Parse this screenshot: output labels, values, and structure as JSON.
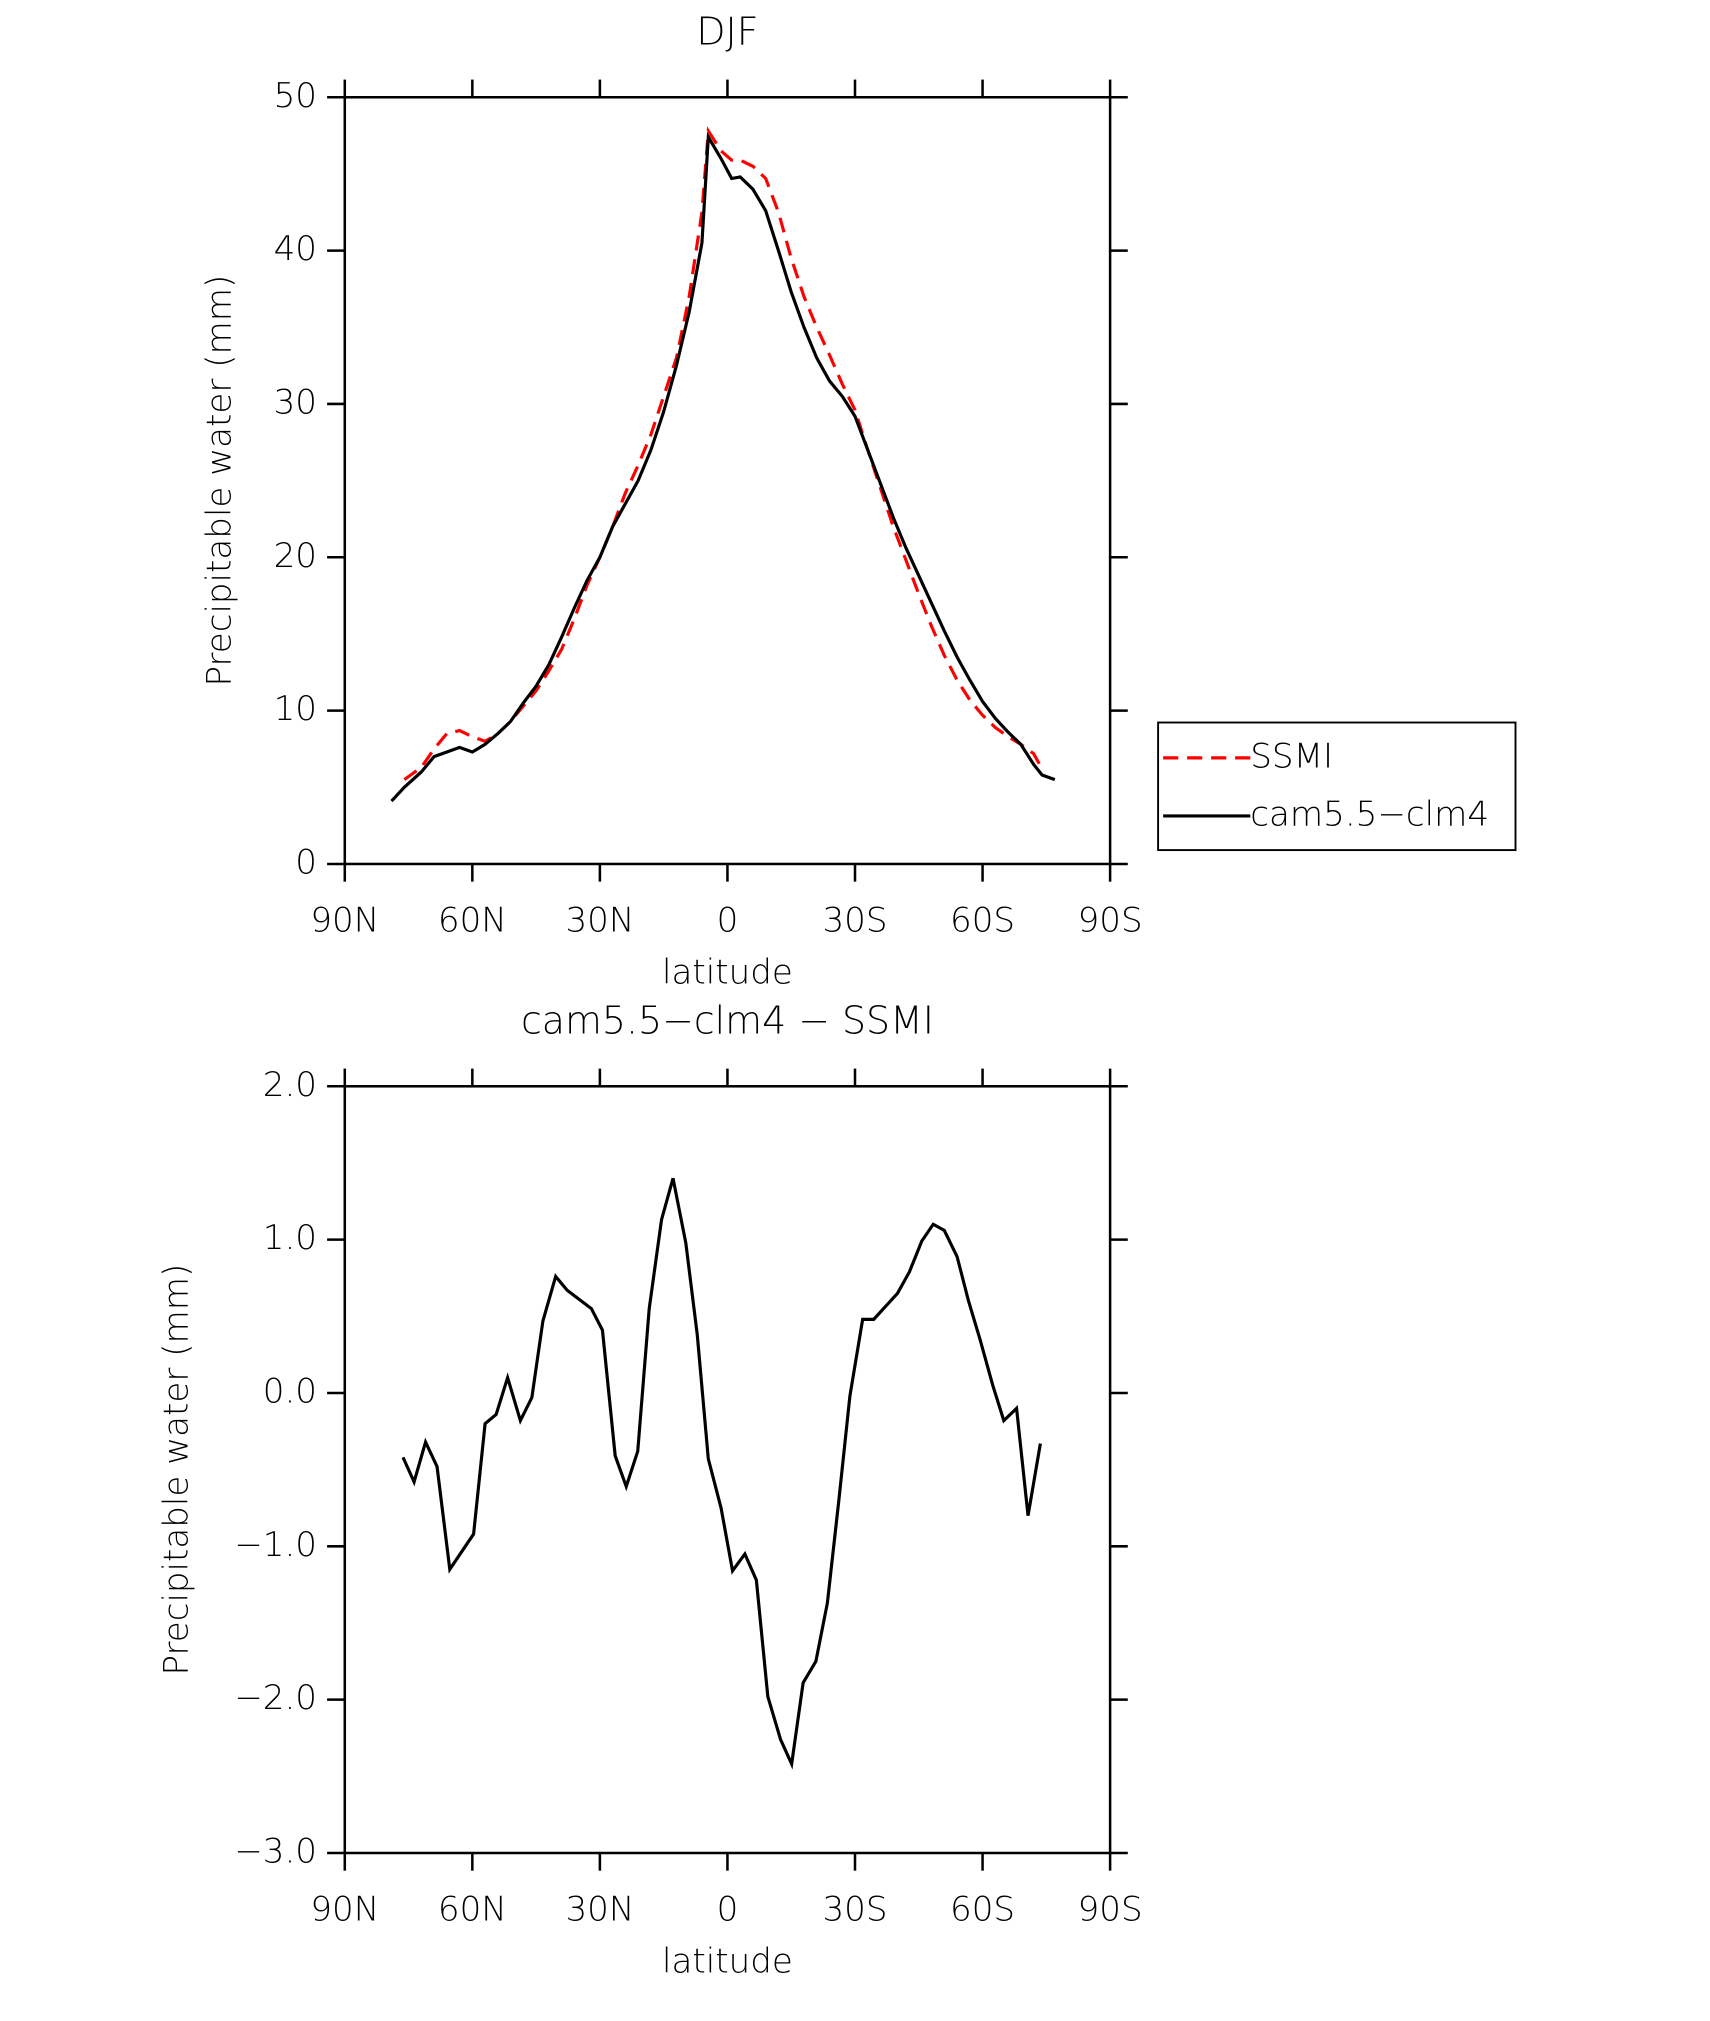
{
  "chart_data": [
    {
      "type": "line",
      "title": "DJF",
      "xlabel": "latitude",
      "ylabel": "Precipitable water (mm)",
      "x": [
        79,
        76,
        72,
        69,
        66,
        63,
        60,
        57,
        54,
        51,
        48,
        45,
        42,
        39,
        36,
        33,
        30,
        27,
        24,
        21,
        18,
        15,
        12,
        9,
        6,
        4.5,
        1.5,
        -1,
        -3,
        -6,
        -9,
        -12,
        -15,
        -18,
        -21,
        -24,
        -27,
        -30,
        -33,
        -36,
        -39,
        -42,
        -45,
        -48,
        -51,
        -54,
        -57,
        -60,
        -63,
        -66,
        -69,
        -72,
        -74,
        -77
      ],
      "series": [
        {
          "name": "SSMI",
          "color": "#ff0000",
          "dash": "dashed",
          "values": [
            null,
            5.5,
            6.3,
            7.5,
            8.5,
            8.7,
            8.3,
            8.0,
            8.5,
            9.3,
            10.3,
            11.3,
            12.6,
            14.0,
            16.0,
            18.2,
            20.0,
            22.0,
            24.2,
            26.0,
            28.0,
            30.5,
            33.0,
            37.0,
            42.5,
            47.8,
            46.5,
            45.9,
            45.9,
            45.5,
            44.7,
            42.5,
            39.5,
            37.0,
            35.0,
            33.2,
            31.3,
            29.6,
            27.0,
            24.5,
            22.0,
            19.8,
            17.6,
            15.5,
            13.6,
            12.0,
            10.7,
            9.7,
            8.9,
            8.3,
            7.8,
            7.2,
            6.2,
            null
          ]
        },
        {
          "name": "cam5.5−clm4",
          "color": "#000000",
          "dash": "solid",
          "values": [
            4.1,
            5.0,
            6.0,
            7.0,
            7.3,
            7.6,
            7.3,
            7.8,
            8.5,
            9.3,
            10.5,
            11.6,
            13.0,
            14.8,
            16.7,
            18.5,
            20.0,
            22.0,
            23.5,
            25.0,
            27.0,
            29.5,
            32.5,
            36.0,
            40.5,
            47.4,
            46.0,
            44.7,
            44.8,
            44.0,
            42.6,
            40.0,
            37.3,
            35.0,
            33.0,
            31.5,
            30.5,
            29.2,
            27.0,
            24.8,
            22.6,
            20.6,
            18.8,
            17.0,
            15.2,
            13.5,
            12.0,
            10.6,
            9.5,
            8.6,
            7.8,
            6.5,
            5.8,
            5.5
          ]
        }
      ],
      "xlim": [
        90,
        -90
      ],
      "xticks": [
        {
          "value": 90,
          "label": "90N"
        },
        {
          "value": 60,
          "label": "60N"
        },
        {
          "value": 30,
          "label": "30N"
        },
        0,
        {
          "value": -30,
          "label": "30S"
        },
        {
          "value": -60,
          "label": "60S"
        },
        {
          "value": -90,
          "label": "90S"
        }
      ],
      "ylim": [
        0,
        50
      ],
      "yticks": [
        0,
        10,
        20,
        30,
        40,
        50
      ],
      "legend": "outside right"
    },
    {
      "type": "line",
      "title": "cam5.5−clm4 − SSMI",
      "xlabel": "latitude",
      "ylabel": "Precipitable water (mm)",
      "x": [
        76.3,
        73.7,
        71,
        68.3,
        65.3,
        59.7,
        57,
        54.4,
        51.7,
        48.7,
        46,
        43.4,
        40.4,
        37.7,
        32,
        29.4,
        26.4,
        23.8,
        21.1,
        18.4,
        15.5,
        12.8,
        9.8,
        7.1,
        4.5,
        1.5,
        -1.2,
        -4.1,
        -6.8,
        -9.5,
        -12.5,
        -15.1,
        -17.8,
        -20.8,
        -23.5,
        -26.2,
        -28.8,
        -31.8,
        -34.4,
        -40,
        -42.8,
        -45.7,
        -48.4,
        -51,
        -54,
        -56.7,
        -59.4,
        -62.4,
        -65,
        -68,
        -70.7,
        -73.6
      ],
      "series": [
        {
          "color": "#000000",
          "dash": "solid",
          "values": [
            -0.42,
            -0.58,
            -0.32,
            -0.48,
            -1.15,
            -0.92,
            -0.2,
            -0.14,
            0.1,
            -0.18,
            -0.03,
            0.47,
            0.76,
            0.67,
            0.55,
            0.41,
            -0.41,
            -0.61,
            -0.38,
            0.55,
            1.13,
            1.4,
            0.98,
            0.38,
            -0.43,
            -0.75,
            -1.16,
            -1.05,
            -1.22,
            -1.98,
            -2.26,
            -2.42,
            -1.89,
            -1.75,
            -1.37,
            -0.7,
            -0.02,
            0.48,
            0.48,
            0.65,
            0.79,
            0.99,
            1.1,
            1.06,
            0.89,
            0.6,
            0.35,
            0.05,
            -0.18,
            -0.1,
            -0.8,
            -0.33
          ]
        }
      ],
      "xlim": [
        90,
        -90
      ],
      "xticks": [
        {
          "value": 90,
          "label": "90N"
        },
        {
          "value": 60,
          "label": "60N"
        },
        {
          "value": 30,
          "label": "30N"
        },
        0,
        {
          "value": -30,
          "label": "30S"
        },
        {
          "value": -60,
          "label": "60S"
        },
        {
          "value": -90,
          "label": "90S"
        }
      ],
      "ylim": [
        -3,
        2
      ],
      "yticks": [
        {
          "value": -3,
          "label": "−3.0"
        },
        {
          "value": -2,
          "label": "−2.0"
        },
        {
          "value": -1,
          "label": "−1.0"
        },
        {
          "value": 0,
          "label": "0.0"
        },
        {
          "value": 1,
          "label": "1.0"
        },
        {
          "value": 2,
          "label": "2.0"
        }
      ]
    }
  ]
}
